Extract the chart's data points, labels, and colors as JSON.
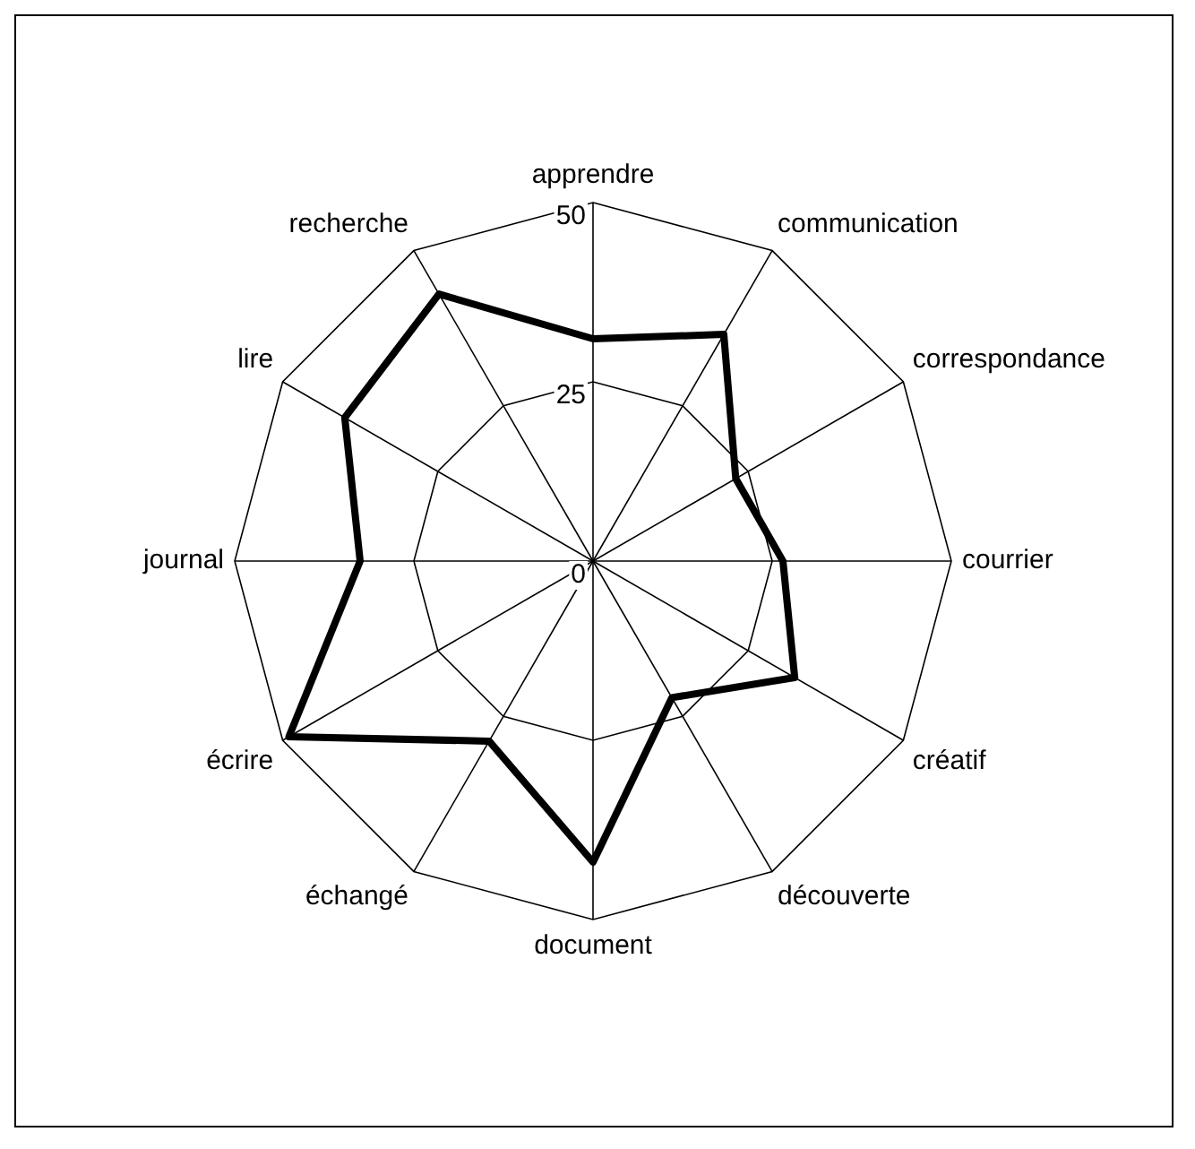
{
  "chart_data": {
    "type": "radar",
    "categories": [
      "apprendre",
      "communication",
      "correspondance",
      "courrier",
      "créatif",
      "découverte",
      "document",
      "échangé",
      "écrire",
      "journal",
      "lire",
      "recherche"
    ],
    "series": [
      {
        "color": "#000000",
        "values": [
          31,
          36.5,
          23,
          26.5,
          32.5,
          22,
          42,
          29,
          49,
          32.5,
          40,
          43
        ]
      }
    ],
    "ylim": [
      0,
      50
    ],
    "yticks": [
      0,
      25,
      50
    ],
    "grid": true,
    "legend": false,
    "marker": "none",
    "line_style": "solid"
  }
}
